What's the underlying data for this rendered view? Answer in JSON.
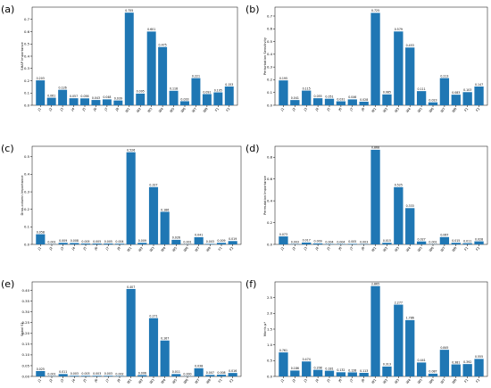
{
  "colors": {
    "bar": "#1f77b4",
    "axis": "#000000"
  },
  "chart_data": [
    {
      "type": "bar",
      "panel_label": "(a)",
      "ylabel": "SHAP Importance",
      "ylim": [
        0,
        0.8
      ],
      "yticks": [
        0.0,
        0.1,
        0.2,
        0.3,
        0.4,
        0.5,
        0.6,
        0.7
      ],
      "tick_labels": [
        "0.0",
        "0.1",
        "0.2",
        "0.3",
        "0.4",
        "0.5",
        "0.6",
        "0.7"
      ],
      "categories": [
        "J1",
        "J2",
        "J3",
        "J4",
        "J5",
        "J6",
        "J7",
        "J8",
        "W1",
        "W2",
        "W3",
        "W4",
        "W5",
        "W6",
        "W7",
        "W8",
        "F1",
        "F2"
      ],
      "values": [
        0.203,
        0.061,
        0.126,
        0.057,
        0.056,
        0.043,
        0.048,
        0.039,
        0.755,
        0.095,
        0.601,
        0.475,
        0.118,
        0.033,
        0.221,
        0.091,
        0.105,
        0.153
      ],
      "value_labels": [
        "0.203",
        "0.061",
        "0.126",
        "0.057",
        "0.056",
        "0.043",
        "0.048",
        "0.039",
        "0.755",
        "0.095",
        "0.601",
        "0.475",
        "0.118",
        "0.033",
        "0.221",
        "0.091",
        "0.105",
        "0.153"
      ],
      "grid": false
    },
    {
      "type": "bar",
      "panel_label": "(b)",
      "ylabel": "Perturbation Sensitivity",
      "ylim": [
        0,
        0.77
      ],
      "yticks": [
        0.0,
        0.1,
        0.2,
        0.3,
        0.4,
        0.5,
        0.6,
        0.7
      ],
      "tick_labels": [
        "0.0",
        "0.1",
        "0.2",
        "0.3",
        "0.4",
        "0.5",
        "0.6",
        "0.7"
      ],
      "categories": [
        "J1",
        "J2",
        "J3",
        "J4",
        "J5",
        "J6",
        "J7",
        "J8",
        "W1",
        "W2",
        "W3",
        "W4",
        "W5",
        "W6",
        "W7",
        "W8",
        "F1",
        "F2"
      ],
      "values": [
        0.195,
        0.041,
        0.115,
        0.055,
        0.051,
        0.031,
        0.046,
        0.028,
        0.725,
        0.085,
        0.579,
        0.453,
        0.111,
        0.023,
        0.213,
        0.083,
        0.103,
        0.147
      ],
      "value_labels": [
        "0.195",
        "0.041",
        "0.115",
        "0.055",
        "0.051",
        "0.031",
        "0.046",
        "0.028",
        "0.725",
        "0.085",
        "0.579",
        "0.453",
        "0.111",
        "0.023",
        "0.213",
        "0.083",
        "0.103",
        "0.147"
      ],
      "grid": false
    },
    {
      "type": "bar",
      "panel_label": "(c)",
      "ylabel": "Drop-column Importance",
      "ylim": [
        0,
        0.56
      ],
      "yticks": [
        0.0,
        0.1,
        0.2,
        0.3,
        0.4,
        0.5
      ],
      "tick_labels": [
        "0.0",
        "0.1",
        "0.2",
        "0.3",
        "0.4",
        "0.5"
      ],
      "categories": [
        "J1",
        "J2",
        "J3",
        "J4",
        "J5",
        "J6",
        "J7",
        "J8",
        "W1",
        "W2",
        "W3",
        "W4",
        "W5",
        "W6",
        "W7",
        "W8",
        "F1",
        "F2"
      ],
      "values": [
        0.058,
        0.001,
        0.009,
        0.008,
        0.005,
        0.005,
        0.005,
        0.004,
        0.526,
        0.009,
        0.327,
        0.186,
        0.026,
        0.001,
        0.041,
        0.003,
        0.009,
        0.019
      ],
      "value_labels": [
        "0.058",
        "0.001",
        "0.009",
        "0.008",
        "0.005",
        "0.005",
        "0.005",
        "0.004",
        "0.526",
        "0.009",
        "0.327",
        "0.186",
        "0.026",
        "0.001",
        "0.041",
        "0.003",
        "0.009",
        "0.019"
      ],
      "grid": false
    },
    {
      "type": "bar",
      "panel_label": "(d)",
      "ylabel": "Permutation Importance",
      "ylim": [
        0,
        0.9
      ],
      "yticks": [
        0.0,
        0.2,
        0.4,
        0.6,
        0.8
      ],
      "tick_labels": [
        "0.0",
        "0.2",
        "0.4",
        "0.6",
        "0.8"
      ],
      "categories": [
        "J1",
        "J2",
        "J3",
        "J4",
        "J5",
        "J6",
        "J7",
        "J8",
        "W1",
        "W2",
        "W3",
        "W4",
        "W5",
        "W6",
        "W7",
        "W8",
        "F1",
        "F2"
      ],
      "values": [
        0.073,
        0.003,
        0.017,
        0.009,
        0.004,
        0.004,
        0.005,
        0.003,
        0.868,
        0.015,
        0.525,
        0.333,
        0.027,
        0.001,
        0.067,
        0.015,
        0.011,
        0.028
      ],
      "value_labels": [
        "0.073",
        "0.003",
        "0.017",
        "0.009",
        "0.004",
        "0.004",
        "0.005",
        "0.003",
        "0.868",
        "0.015",
        "0.525",
        "0.333",
        "0.027",
        "0.001",
        "0.067",
        "0.015",
        "0.011",
        "0.028"
      ],
      "grid": false
    },
    {
      "type": "bar",
      "panel_label": "(e)",
      "ylabel": "Sobol S1",
      "ylim": [
        0,
        0.44
      ],
      "yticks": [
        0.0,
        0.05,
        0.1,
        0.15,
        0.2,
        0.25,
        0.3,
        0.35,
        0.4
      ],
      "tick_labels": [
        "0.00",
        "0.05",
        "0.10",
        "0.15",
        "0.20",
        "0.25",
        "0.30",
        "0.35",
        "0.40"
      ],
      "categories": [
        "J1",
        "J2",
        "J3",
        "J4",
        "J5",
        "J6",
        "J7",
        "J8",
        "W1",
        "W2",
        "W3",
        "W4",
        "W5",
        "W6",
        "W7",
        "W8",
        "F1",
        "F2"
      ],
      "values": [
        0.025,
        0.001,
        0.011,
        0.003,
        0.003,
        0.003,
        0.003,
        0.002,
        0.407,
        0.006,
        0.271,
        0.167,
        0.011,
        0.0,
        0.038,
        0.007,
        0.008,
        0.016
      ],
      "value_labels": [
        "0.025",
        "0.001",
        "0.011",
        "0.003",
        "0.003",
        "0.003",
        "0.003",
        "0.002",
        "0.407",
        "0.006",
        "0.271",
        "0.167",
        "0.011",
        "0.000",
        "0.038",
        "0.007",
        "0.008",
        "0.016"
      ],
      "grid": false
    },
    {
      "type": "bar",
      "panel_label": "(f)",
      "ylabel": "Morris μ*",
      "ylim": [
        0,
        3.0
      ],
      "yticks": [
        0.0,
        0.5,
        1.0,
        1.5,
        2.0,
        2.5
      ],
      "tick_labels": [
        "0.0",
        "0.5",
        "1.0",
        "1.5",
        "2.0",
        "2.5"
      ],
      "categories": [
        "J1",
        "J2",
        "J3",
        "J4",
        "J5",
        "J6",
        "J7",
        "J8",
        "W1",
        "W2",
        "W3",
        "W4",
        "W5",
        "W6",
        "W7",
        "W8",
        "F1",
        "F2"
      ],
      "values": [
        0.761,
        0.186,
        0.474,
        0.208,
        0.181,
        0.132,
        0.128,
        0.113,
        2.865,
        0.313,
        2.277,
        1.786,
        0.441,
        0.087,
        0.845,
        0.381,
        0.392,
        0.555
      ],
      "value_labels": [
        "0.761",
        "0.186",
        "0.474",
        "0.208",
        "0.181",
        "0.132",
        "0.128",
        "0.113",
        "2.865",
        "0.313",
        "2.277",
        "1.786",
        "0.441",
        "0.087",
        "0.845",
        "0.381",
        "0.392",
        "0.555"
      ],
      "grid": false
    }
  ]
}
